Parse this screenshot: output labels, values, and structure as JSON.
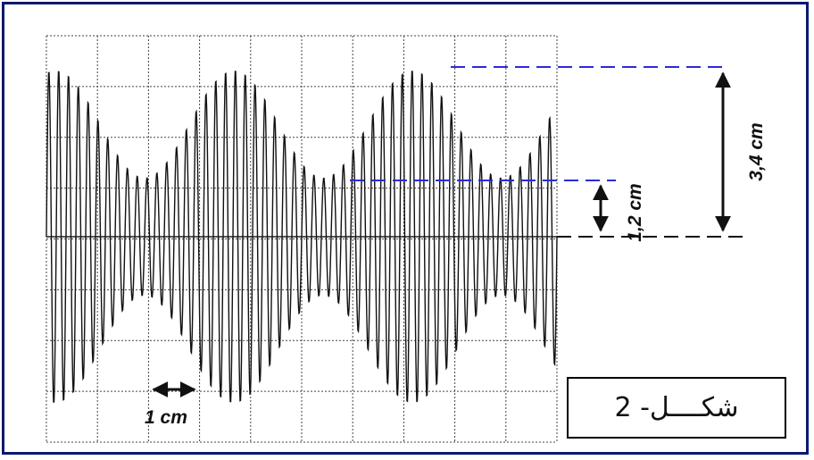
{
  "figure": {
    "caption": "2 -شكــــل",
    "labels": {
      "period_marker": "1 cm",
      "min_amplitude": "1,2 cm",
      "max_amplitude": "3,4 cm"
    },
    "colors": {
      "frame_border": "#0b1a6e",
      "reference_dashes": "#2b2bd6",
      "signal": "#111111",
      "grid": "#444444"
    },
    "grid": {
      "divisions_x": 10,
      "divisions_y": 8,
      "style": "dotted"
    }
  },
  "chart_data": {
    "type": "line",
    "signal_kind": "amplitude-modulated sine wave (oscilloscope trace)",
    "envelope_max_cm": 3.4,
    "envelope_min_cm": 1.2,
    "period_marker_cm": 1,
    "modulation_periods_visible": 2.5,
    "grid_divisions": {
      "x": 10,
      "y": 8
    }
  }
}
